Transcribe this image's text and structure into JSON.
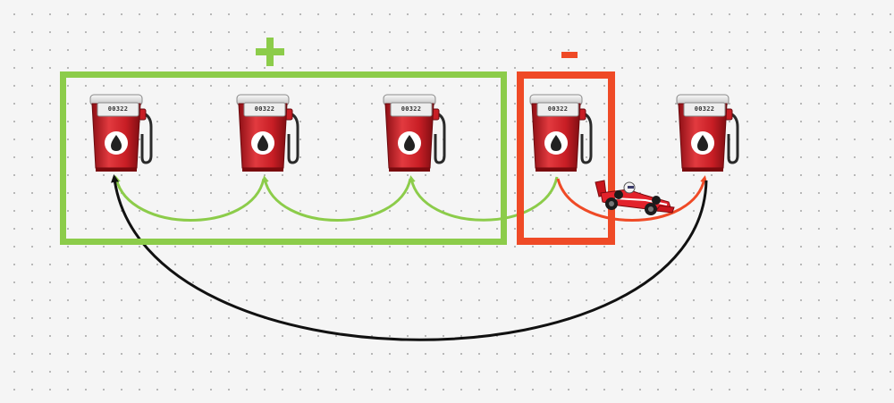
{
  "labels": {
    "plus": "+",
    "minus": "-"
  },
  "colors": {
    "plus_group": "#8ccc4a",
    "minus_group": "#ef4a26",
    "return_arrow": "#111111",
    "pump_body": "#d0202a"
  },
  "pumps": [
    {
      "reading": "00322"
    },
    {
      "reading": "00322"
    },
    {
      "reading": "00322"
    },
    {
      "reading": "00322"
    },
    {
      "reading": "00322"
    }
  ],
  "icons": {
    "station": "fuel-pump-icon",
    "vehicle": "race-car-icon",
    "drop": "fuel-drop-icon"
  }
}
